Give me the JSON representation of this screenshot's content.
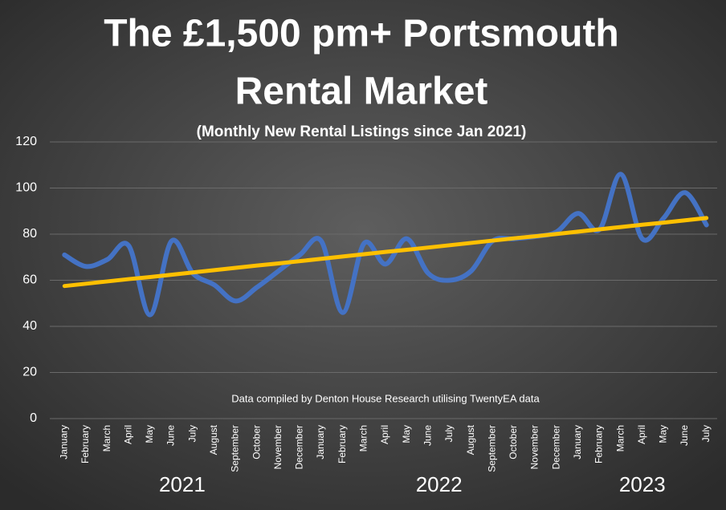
{
  "chart_data": {
    "type": "line",
    "title": [
      "The £1,500 pm+ Portsmouth",
      "Rental Market"
    ],
    "subtitle": "(Monthly New Rental Listings since Jan 2021)",
    "annotation": "Data compiled by Denton House Research utilising TwentyEA data",
    "categories": [
      "January",
      "February",
      "March",
      "April",
      "May",
      "June",
      "July",
      "August",
      "September",
      "October",
      "November",
      "December",
      "January",
      "February",
      "March",
      "April",
      "May",
      "June",
      "July",
      "August",
      "September",
      "October",
      "November",
      "December",
      "January",
      "February",
      "March",
      "April",
      "May",
      "June",
      "July"
    ],
    "year_groups": [
      {
        "label": "2021",
        "months": 12
      },
      {
        "label": "2022",
        "months": 12
      },
      {
        "label": "2023",
        "months": 7
      }
    ],
    "series": [
      {
        "color": "#4472c4",
        "smooth": true,
        "values": [
          71,
          66,
          69,
          75,
          45,
          77,
          63,
          58,
          51,
          57,
          64,
          71,
          77,
          46,
          76,
          67,
          78,
          63,
          60,
          64,
          77,
          78,
          79,
          81,
          89,
          82,
          106,
          78,
          87,
          98,
          84
        ]
      },
      {
        "color": "#ffc000",
        "smooth": false,
        "values": [
          57.5,
          58.5,
          59.5,
          60.5,
          61.4,
          62.4,
          63.4,
          64.4,
          65.4,
          66.4,
          67.3,
          68.3,
          69.3,
          70.3,
          71.3,
          72.3,
          73.2,
          74.2,
          75.2,
          76.2,
          77.2,
          78.2,
          79.1,
          80.1,
          81.1,
          82.1,
          83.1,
          84.1,
          85.0,
          86.0,
          87.0
        ]
      }
    ],
    "ylim": [
      0,
      120
    ],
    "yticks": [
      0,
      20,
      40,
      60,
      80,
      100,
      120
    ],
    "grid": true
  }
}
